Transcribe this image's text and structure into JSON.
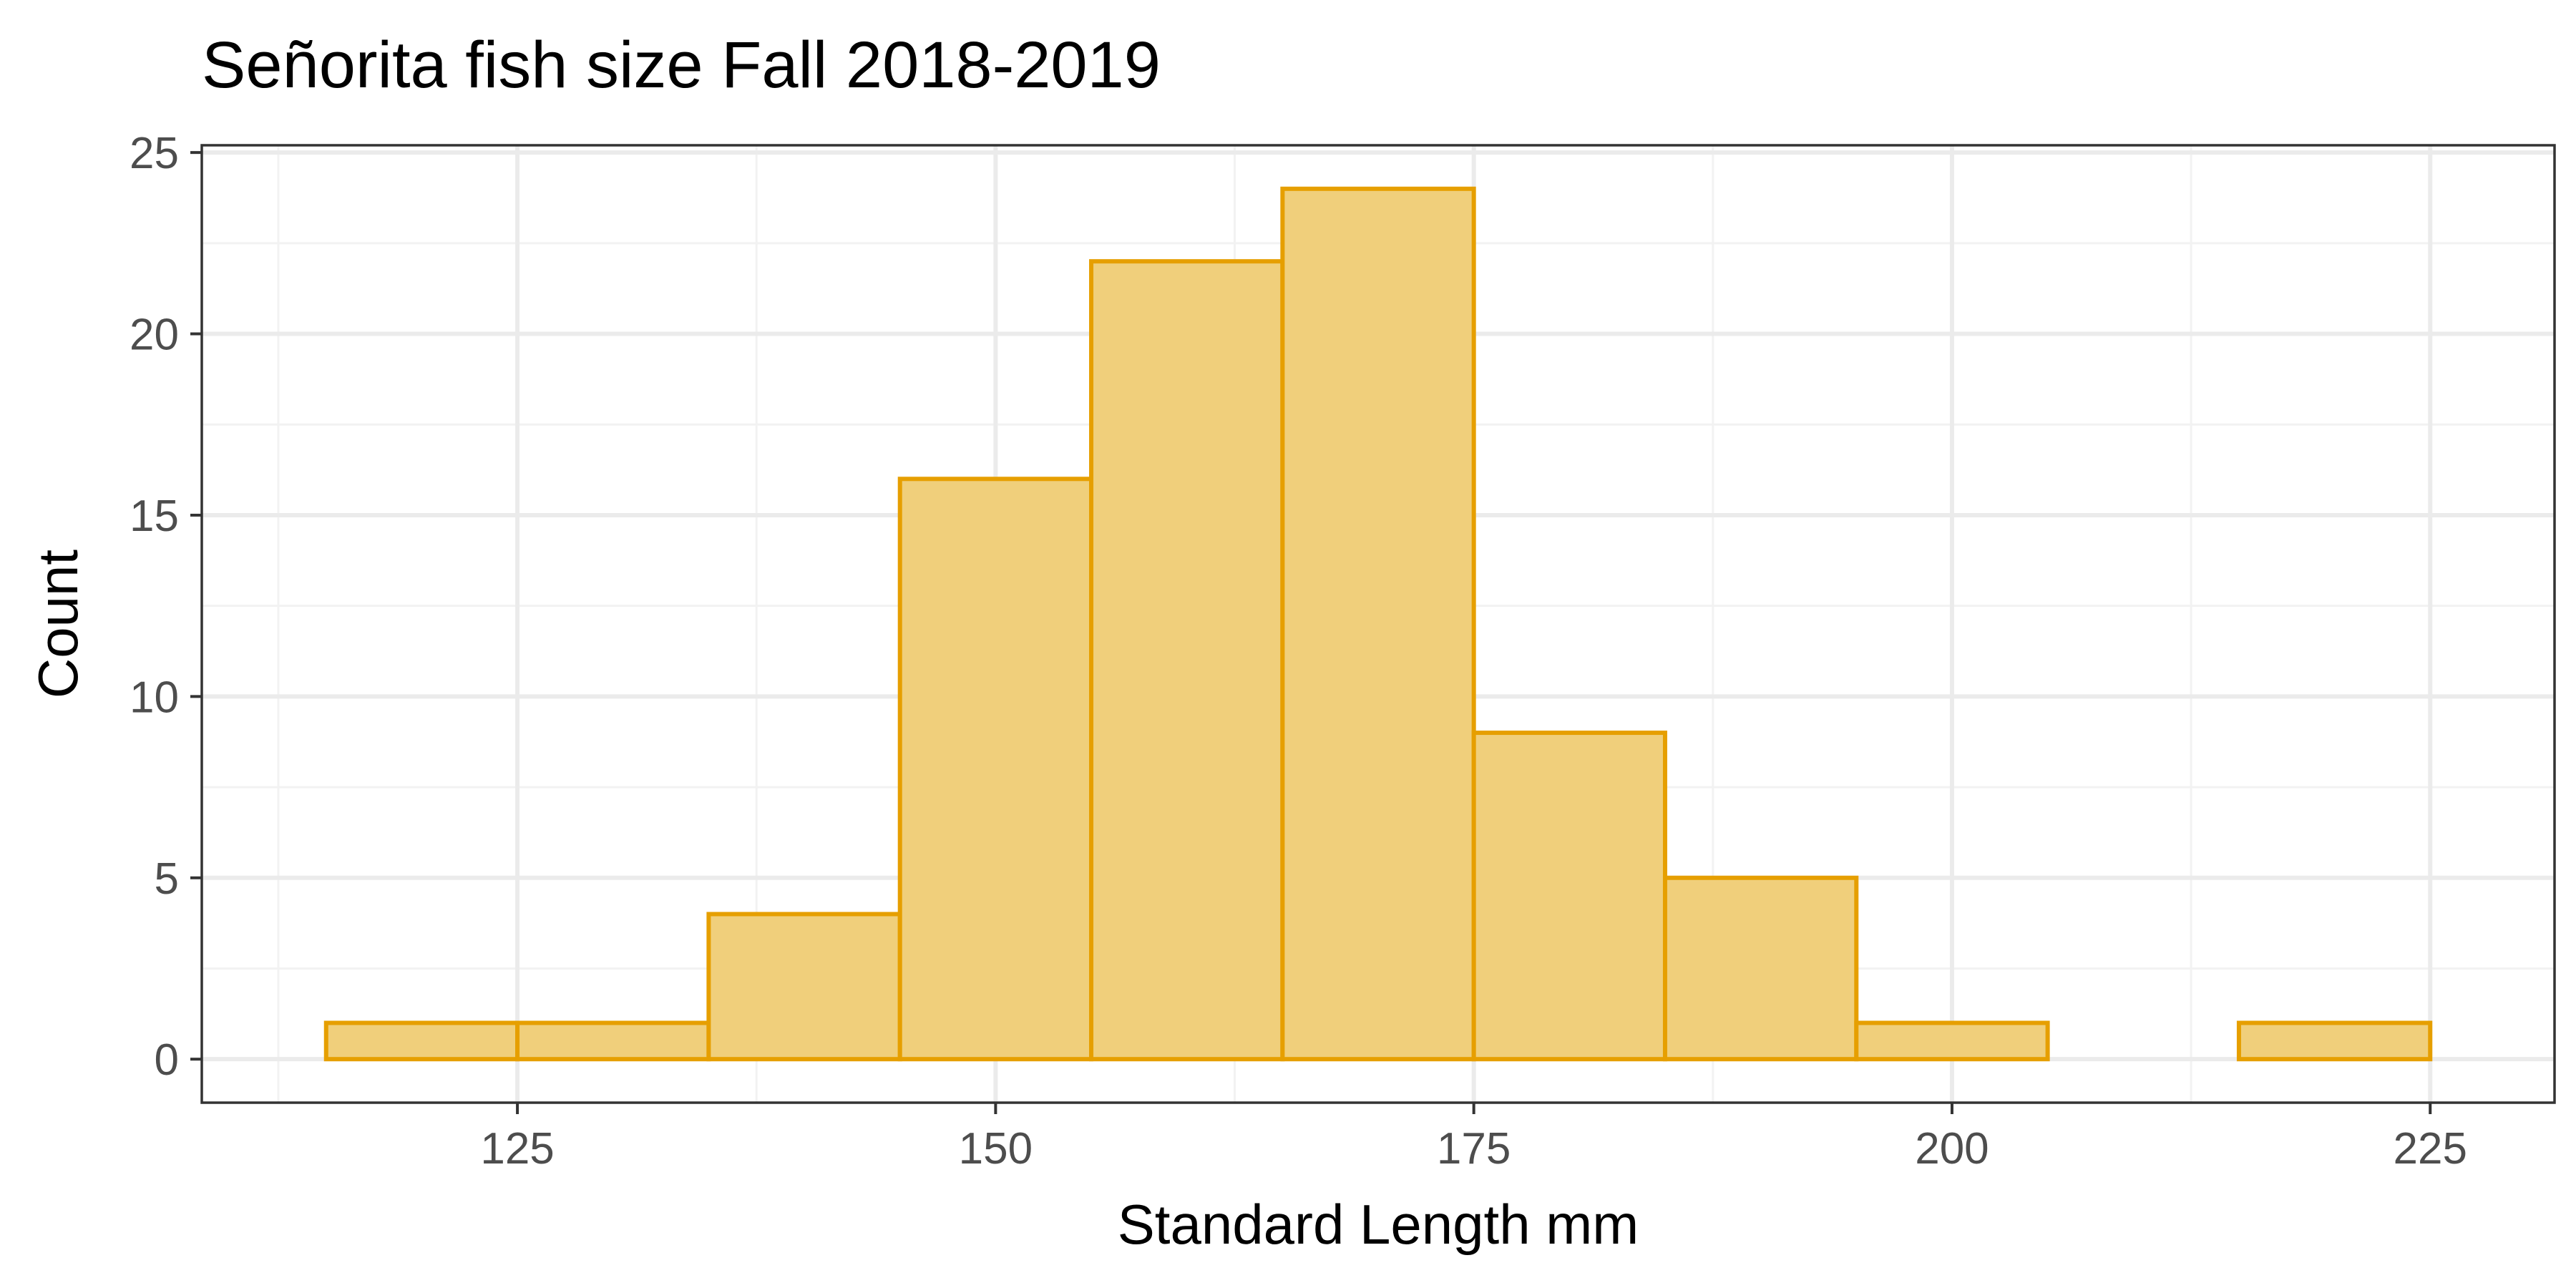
{
  "chart_data": {
    "type": "bar",
    "subtype": "histogram",
    "title": "Señorita fish size Fall 2018-2019",
    "xlabel": "Standard Length mm",
    "ylabel": "Count",
    "xlim": [
      108.5,
      231.5
    ],
    "ylim": [
      -1.2,
      25.2
    ],
    "x_ticks": [
      125,
      150,
      175,
      200,
      225
    ],
    "y_ticks": [
      0,
      5,
      10,
      15,
      20,
      25
    ],
    "x_minor": [
      112.5,
      137.5,
      162.5,
      187.5,
      212.5
    ],
    "y_minor": [
      2.5,
      7.5,
      12.5,
      17.5,
      22.5
    ],
    "bins": [
      {
        "x0": 115,
        "x1": 125,
        "count": 1
      },
      {
        "x0": 125,
        "x1": 135,
        "count": 1
      },
      {
        "x0": 135,
        "x1": 145,
        "count": 4
      },
      {
        "x0": 145,
        "x1": 155,
        "count": 16
      },
      {
        "x0": 155,
        "x1": 165,
        "count": 22
      },
      {
        "x0": 165,
        "x1": 175,
        "count": 24
      },
      {
        "x0": 175,
        "x1": 185,
        "count": 9
      },
      {
        "x0": 185,
        "x1": 195,
        "count": 5
      },
      {
        "x0": 195,
        "x1": 205,
        "count": 1
      },
      {
        "x0": 205,
        "x1": 215,
        "count": 0
      },
      {
        "x0": 215,
        "x1": 225,
        "count": 1
      }
    ],
    "grid": true,
    "colors": {
      "fill": "#f0cf7b",
      "outline": "#e69f00"
    }
  }
}
